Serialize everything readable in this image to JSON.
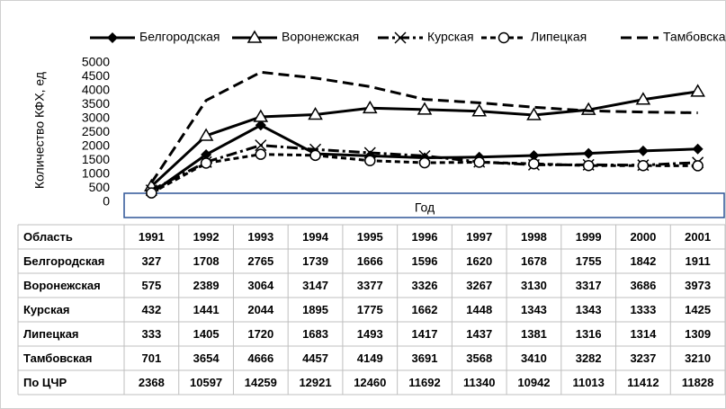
{
  "chart_data": {
    "type": "line",
    "y_label": "Количество КФХ, ед",
    "x_label": "Год",
    "table_header": "Область",
    "categories": [
      "1991",
      "1992",
      "1993",
      "1994",
      "1995",
      "1996",
      "1997",
      "1998",
      "1999",
      "2000",
      "2001"
    ],
    "ylim": [
      0,
      5000
    ],
    "yticks": [
      0,
      500,
      1000,
      1500,
      2000,
      2500,
      3000,
      3500,
      4000,
      4500,
      5000
    ],
    "series": [
      {
        "name": "Белгородская",
        "color": "#000000",
        "line_style": "solid",
        "marker": "diamond",
        "values": [
          327,
          1708,
          2765,
          1739,
          1666,
          1596,
          1620,
          1678,
          1755,
          1842,
          1911
        ]
      },
      {
        "name": "Воронежская",
        "color": "#000000",
        "line_style": "solid",
        "marker": "triangle",
        "values": [
          575,
          2389,
          3064,
          3147,
          3377,
          3326,
          3267,
          3130,
          3317,
          3686,
          3973
        ]
      },
      {
        "name": "Курская",
        "color": "#000000",
        "line_style": "dash-dot",
        "marker": "cross",
        "values": [
          432,
          1441,
          2044,
          1895,
          1775,
          1662,
          1448,
          1343,
          1343,
          1333,
          1425
        ]
      },
      {
        "name": "Липецкая",
        "color": "#000000",
        "line_style": "dashed",
        "marker": "circle",
        "values": [
          333,
          1405,
          1720,
          1683,
          1493,
          1417,
          1437,
          1381,
          1316,
          1314,
          1309
        ]
      },
      {
        "name": "Тамбовская",
        "color": "#000000",
        "line_style": "long-dash",
        "marker": "none",
        "values": [
          701,
          3654,
          4666,
          4457,
          4149,
          3691,
          3568,
          3410,
          3282,
          3237,
          3210
        ]
      }
    ],
    "totals": {
      "name": "По ЦЧР",
      "values": [
        2368,
        10597,
        14259,
        12921,
        12460,
        11692,
        11340,
        10942,
        11013,
        11412,
        11828
      ]
    }
  }
}
